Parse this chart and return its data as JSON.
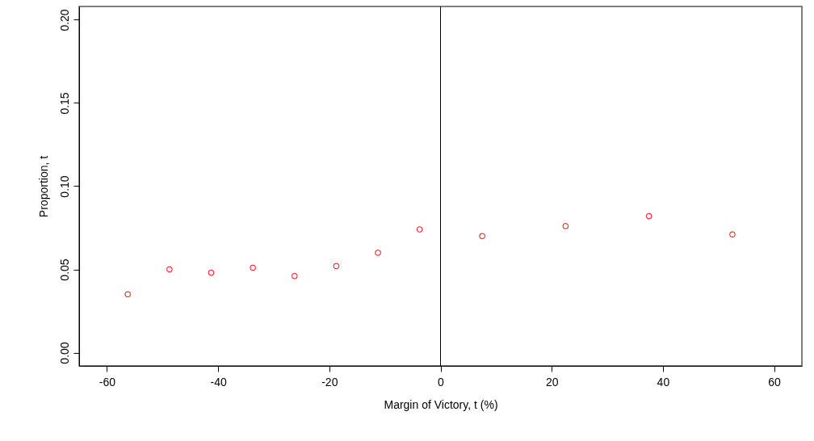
{
  "chart_data": {
    "type": "scatter",
    "xlabel": "Margin of Victory, t (%)",
    "ylabel": "Proportion, t",
    "x": [
      -56.25,
      -48.75,
      -41.25,
      -33.75,
      -26.25,
      -18.75,
      -11.25,
      -3.75,
      7.5,
      22.5,
      37.5,
      52.5
    ],
    "series": [
      {
        "color": "#ff0000",
        "values": [
          0.035,
          0.05,
          0.048,
          0.051,
          0.046,
          0.052,
          0.06,
          0.074,
          0.07,
          0.076,
          0.082,
          0.071
        ]
      }
    ],
    "xlim": [
      -65,
      65
    ],
    "xticks": [
      -60,
      -40,
      -20,
      0,
      20,
      40,
      60
    ],
    "ylim": [
      -0.008,
      0.208
    ],
    "yticks": [
      {
        "value": 0,
        "label": "0.00"
      },
      {
        "value": 0.05,
        "label": "0.05"
      },
      {
        "value": 0.1,
        "label": "0.10"
      },
      {
        "value": 0.15,
        "label": "0.15"
      },
      {
        "value": 0.2,
        "label": "0.20"
      }
    ],
    "ref_lines": [
      {
        "axis": "x",
        "value": 0,
        "color": "#000000"
      }
    ],
    "marker": "circle",
    "grid": false
  }
}
